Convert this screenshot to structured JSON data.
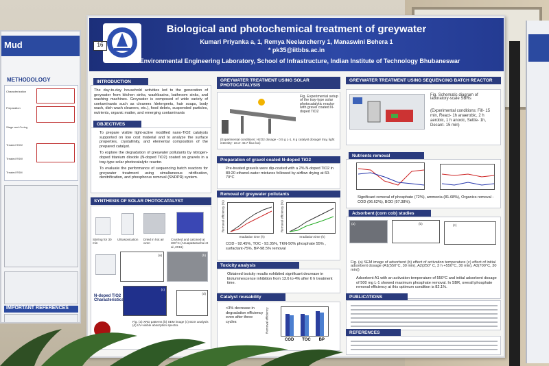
{
  "left_poster": {
    "title": "Mud",
    "methodology": "METHODOLOGY",
    "steps": [
      "Characterization",
      "Preparation",
      "Stage and Curing",
      "Treated SSW",
      "Treated RSW",
      "Treated RSM"
    ],
    "references_heading": "IMPORTANT REFERENCES"
  },
  "board_number": "16",
  "header": {
    "title": "Biological and photochemical treatment of greywater",
    "authors": "Kumari Priyanka a, 1, Remya Neelancherry 1, Manaswini Behera 1",
    "email": "* pk35@iitbbs.ac.in",
    "affiliation": "1. Environmental Engineering Laboratory, School of Infrastructure, Indian Institute of Technology Bhubaneswar"
  },
  "introduction": {
    "heading": "INTRODUCTION",
    "text": "The day-to-day household activities led to the generation of greywater from kitchen sinks, washbasins, bathroom sinks, and washing machines. Greywater is composed of wide variety of contaminants such as cleaners /detergents, hair soaps, body wash, dish wash cleaners, etc.), food debris, suspended particles, nutrients, organic matter, and emerging contaminants"
  },
  "objectives": {
    "heading": "OBJECTIVES",
    "items": [
      "To prepare visible light-active modified nano-TiO2 catalysts supported on low cost material and to analyze the surface properties, crystallinity, and elemental composition of the prepared catalyst.",
      "To explore the degradation of greywater pollutants by nitrogen-doped titanium dioxide (N-doped TiO2) coated on gravels in a tray-type solar photocatalytic reactor.",
      "To evaluate the performance of sequencing batch reactors for greywater treatment using simultaneous nitrification, denitrification, and phosphorus removal (SNDPR) system."
    ]
  },
  "synthesis": {
    "heading": "SYNTHESIS OF SOLAR PHOTOCATALYST",
    "steps": [
      "Stirring for 30 min",
      "Ultrasonication",
      "Dried in hot air oven",
      "Crushed and calcined at 300°C (Anuapattarachai et al.,2016)"
    ],
    "char_label": "N-doped TiO2 Characteristics",
    "caption": "Fig. (a) XRD patterns (b) SEM image (c) EDX analysis (d) UV-visible absorption spectra",
    "panel_labels": [
      "(a)",
      "(b)",
      "(c)",
      "(d)"
    ]
  },
  "photocatalysis": {
    "heading": "GREYWATER TREATMENT USING SOLAR PHOTOCATALYSIS",
    "fig_caption": "Fig. Experimental setup of the tray-type solar photocatalytic reactor with gravel coated N- doped TiO2",
    "conditions": "(Experimental conditions: H2O2 dosage - 0.5 g L-1, 6 g catalyst dosage/ tray, light intensity- 18.3- 45.7 klux lux)",
    "prep_heading": "Preparation of gravel coated N-doped TiO2",
    "prep_text": "Pre-treated gravels were dip-coated with a 2% N-doped TiO2 in 80:20 ethanol-water mixtures followed by airflow drying at 60-70°C",
    "removal_heading": "Removal of greywater pollutants",
    "removal_text": "COD - 92.45%, TOC - 93.35%, TKN-50% phosphate 55% , surfactant-75%, BP-98.5% removal",
    "plot_xlabel": "Irradiation time (h)",
    "plot_ylabel": "Removal efficiency (%)",
    "toxicity_heading": "Toxicity analysis",
    "toxicity_text": "Obtained toxicity results exhibited significant decrease in bioluminescence inhibition from 13.6 to 4% after 6 h treatment time.",
    "reuse_heading": "Catalyst reusability",
    "reuse_text": "<3% decrease in degradation efficiency even after three cycles",
    "reuse_chart": {
      "categories": [
        "COD",
        "TOC",
        "BP"
      ],
      "ylabel": "Removal efficiency"
    }
  },
  "sbr": {
    "heading": "GREYWATER TREATMENT USING SEQUENCING BATCH REACTOR",
    "fig_caption": "Fig. Schematic diagram of laboratory-scale SBRs",
    "conditions": "(Experimental conditions: Fill- 15 min, React- 1h anaerobic, 2 h aerobic, 1 h anoxic, Settle- 1h, Decant- 15 min)",
    "nutrients_heading": "Nutrients removal",
    "nutrients_text": "Significant removal of phosphate (72%), ammonia (81.68%), Organics removal - COD (96.62%), BOD (97.38%).",
    "adsorbent_heading": "Adsorbent (corn cob) studies",
    "adsorbent_labels": [
      "(a)",
      "(b)",
      "(c)"
    ],
    "adsorbent_caption": "Fig. (a) SEM image of adsorbent (b) effect of activation temperature (c) effect of initial adsorbent dosage (A1(550°C, 30 min), A2(250° C, 3 h +550°C, 30 min), A3(700°C, 30 min))",
    "adsorbent_text": "Adsorbent A1 with an activation temperature of 550°C and initial adsorbent dosage of 500 mg L-1 showed maximum phosphate removal. In SBR, overall phosphate removal efficiency at this optimum condition is 82.1%.",
    "publications_heading": "PUBLICATIONS",
    "references_heading": "REFERENCES"
  }
}
